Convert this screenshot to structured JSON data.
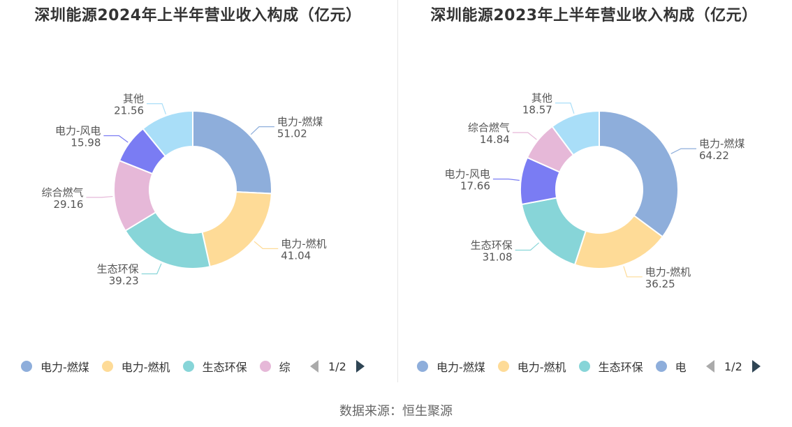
{
  "chart_data": [
    {
      "type": "pie",
      "title": "深圳能源2024年上半年营业收入构成（亿元）",
      "slices": [
        {
          "name": "电力-燃煤",
          "value": 51.02,
          "value_label": "51.02",
          "color": "#8eaedb"
        },
        {
          "name": "电力-燃机",
          "value": 41.04,
          "value_label": "41.04",
          "color": "#fedb97"
        },
        {
          "name": "生态环保",
          "value": 39.23,
          "value_label": "39.23",
          "color": "#87d5d8"
        },
        {
          "name": "综合燃气",
          "value": 29.16,
          "value_label": "29.16",
          "color": "#e6b8d8"
        },
        {
          "name": "电力-风电",
          "value": 15.98,
          "value_label": "15.98",
          "color": "#7a7cf3"
        },
        {
          "name": "其他",
          "value": 21.56,
          "value_label": "21.56",
          "color": "#a9def8"
        }
      ],
      "legend": {
        "position": "bottom",
        "visible_items": [
          "电力-燃煤",
          "电力-燃机",
          "生态环保",
          "综"
        ],
        "page": "1/2"
      }
    },
    {
      "type": "pie",
      "title": "深圳能源2023年上半年营业收入构成（亿元）",
      "slices": [
        {
          "name": "电力-燃煤",
          "value": 64.22,
          "value_label": "64.22",
          "color": "#8eaedb"
        },
        {
          "name": "电力-燃机",
          "value": 36.25,
          "value_label": "36.25",
          "color": "#fedb97"
        },
        {
          "name": "生态环保",
          "value": 31.08,
          "value_label": "31.08",
          "color": "#87d5d8"
        },
        {
          "name": "电力-风电",
          "value": 17.66,
          "value_label": "17.66",
          "color": "#7a7cf3"
        },
        {
          "name": "综合燃气",
          "value": 14.84,
          "value_label": "14.84",
          "color": "#e6b8d8"
        },
        {
          "name": "其他",
          "value": 18.57,
          "value_label": "18.57",
          "color": "#a9def8"
        }
      ],
      "legend": {
        "position": "bottom",
        "visible_items": [
          "电力-燃煤",
          "电力-燃机",
          "生态环保",
          "电"
        ],
        "page": "1/2"
      }
    }
  ],
  "source": "数据来源：恒生聚源"
}
